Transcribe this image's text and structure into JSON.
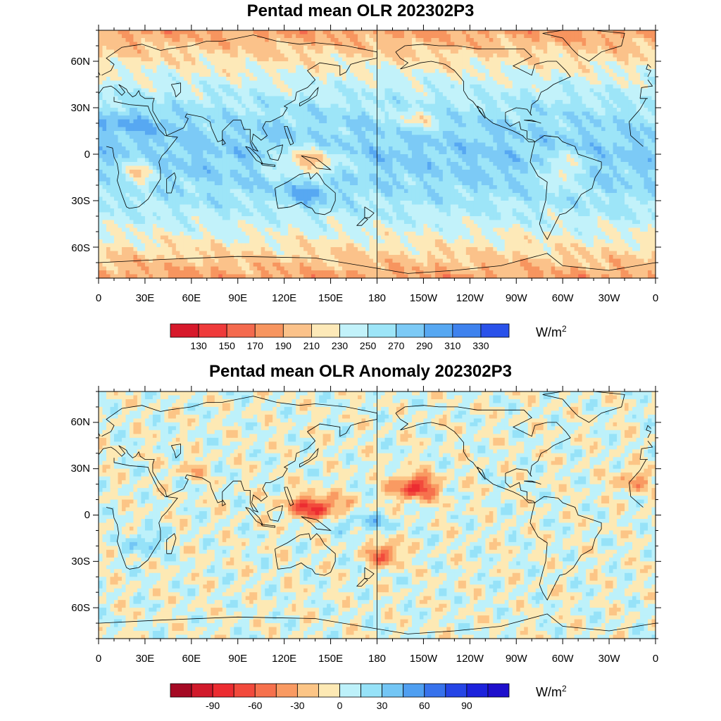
{
  "panels": [
    {
      "title": "Pentad mean OLR 202302P3",
      "lat_labels": [
        "60N",
        "30N",
        "0",
        "30S",
        "60S"
      ],
      "lon_labels": [
        "0",
        "30E",
        "60E",
        "90E",
        "120E",
        "150E",
        "180",
        "150W",
        "120W",
        "90W",
        "60W",
        "30W",
        "0"
      ],
      "colorbar": {
        "colors": [
          "#d7192b",
          "#ef3b3b",
          "#f46a4e",
          "#f7955f",
          "#fbc28a",
          "#fde9b8",
          "#c2f2fa",
          "#9de5f8",
          "#7ccaf6",
          "#57a8f2",
          "#3e82ee",
          "#2a52ea"
        ],
        "labels": [
          "130",
          "150",
          "170",
          "190",
          "210",
          "230",
          "250",
          "270",
          "290",
          "310",
          "330"
        ],
        "unit": "W/m",
        "unit_sup": "2"
      }
    },
    {
      "title": "Pentad mean OLR Anomaly 202302P3",
      "lat_labels": [
        "60N",
        "30N",
        "0",
        "30S",
        "60S"
      ],
      "lon_labels": [
        "0",
        "30E",
        "60E",
        "90E",
        "120E",
        "150E",
        "180",
        "150W",
        "120W",
        "90W",
        "60W",
        "30W",
        "0"
      ],
      "colorbar": {
        "colors": [
          "#a50a24",
          "#d11a2b",
          "#ec2c31",
          "#f24a3c",
          "#f6714d",
          "#f99a62",
          "#fcc586",
          "#fde9b4",
          "#bdf1fa",
          "#96e2f8",
          "#73c6f5",
          "#4f9ff1",
          "#3772ec",
          "#2545e6",
          "#1c22dc",
          "#1e0fcc"
        ],
        "labels": [
          "-90",
          "-60",
          "-30",
          "0",
          "30",
          "60",
          "90"
        ],
        "unit": "W/m",
        "unit_sup": "2"
      }
    }
  ]
}
